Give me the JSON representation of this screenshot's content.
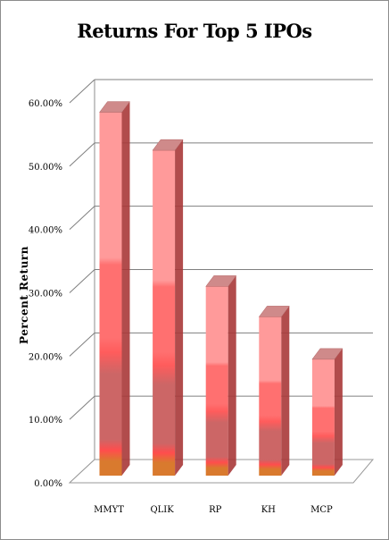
{
  "chart_data": {
    "type": "bar",
    "title": "Returns For Top 5 IPOs",
    "xlabel": "",
    "ylabel": "Percent Return",
    "categories": [
      "MMYT",
      "QLIK",
      "RP",
      "KH",
      "MCP"
    ],
    "values": [
      58.5,
      52.5,
      31.0,
      26.2,
      19.5
    ],
    "unit": "%",
    "ylim": [
      0,
      60
    ],
    "yticks": [
      "0.00%",
      "10.00%",
      "20.00%",
      "30.00%",
      "40.00%",
      "50.00%",
      "60.00%"
    ],
    "grid": true,
    "legend": "none",
    "style": "3d-column",
    "colors": {
      "bar_top": "#ff9a9a",
      "bar_mid": "#ff7070",
      "bar_low": "#cc6666",
      "bar_base": "#d97a2e",
      "side": "#a83838",
      "cap": "#cf8a8a",
      "grid": "#7f7f7f",
      "wall_line": "#8c8c8c"
    }
  }
}
